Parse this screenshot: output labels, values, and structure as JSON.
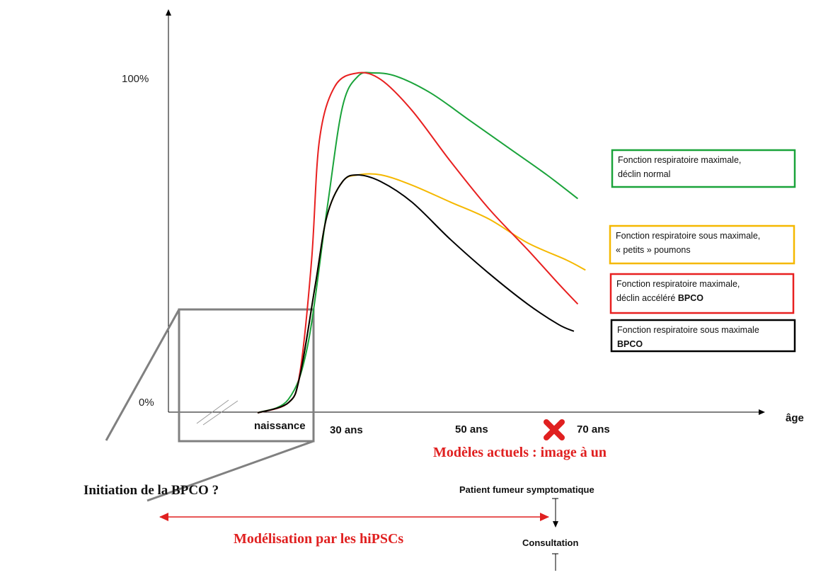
{
  "chart_data": {
    "type": "line",
    "title": "",
    "xlabel": "âge",
    "ylabel": "",
    "y_ticks": [
      "100%",
      "0%"
    ],
    "x_ticks": [
      "naissance",
      "30 ans",
      "50 ans",
      "70 ans"
    ],
    "series": [
      {
        "name": "Fonction respiratoire maximale, déclin normal",
        "color": "#1aa33a",
        "points": [
          [
            0,
            0
          ],
          [
            8,
            4
          ],
          [
            13,
            20
          ],
          [
            18,
            60
          ],
          [
            22,
            90
          ],
          [
            26,
            99
          ],
          [
            30,
            100
          ],
          [
            36,
            99
          ],
          [
            45,
            94
          ],
          [
            55,
            86
          ],
          [
            65,
            78
          ],
          [
            75,
            70
          ],
          [
            83,
            63
          ]
        ]
      },
      {
        "name": "Fonction respiratoire maximale, déclin accéléré BPCO",
        "color": "#e82020",
        "points": [
          [
            0,
            0
          ],
          [
            8,
            3
          ],
          [
            11,
            12
          ],
          [
            14,
            45
          ],
          [
            16,
            80
          ],
          [
            20,
            96
          ],
          [
            26,
            100
          ],
          [
            32,
            98
          ],
          [
            40,
            89
          ],
          [
            50,
            74
          ],
          [
            60,
            60
          ],
          [
            70,
            48
          ],
          [
            78,
            38
          ],
          [
            83,
            32
          ]
        ]
      },
      {
        "name": "Fonction respiratoire sous maximale, « petits » poumons",
        "color": "#f5b800",
        "points": [
          [
            0,
            0
          ],
          [
            8,
            3
          ],
          [
            11,
            11
          ],
          [
            15,
            38
          ],
          [
            18,
            58
          ],
          [
            22,
            68
          ],
          [
            26,
            70
          ],
          [
            32,
            70
          ],
          [
            40,
            67
          ],
          [
            50,
            62
          ],
          [
            60,
            57
          ],
          [
            70,
            50
          ],
          [
            80,
            45
          ],
          [
            85,
            42
          ]
        ]
      },
      {
        "name": "Fonction respiratoire sous maximale BPCO",
        "color": "#000000",
        "points": [
          [
            0,
            0
          ],
          [
            8,
            3
          ],
          [
            11,
            11
          ],
          [
            15,
            38
          ],
          [
            18,
            58
          ],
          [
            22,
            68
          ],
          [
            26,
            70
          ],
          [
            32,
            68
          ],
          [
            40,
            62
          ],
          [
            50,
            51
          ],
          [
            60,
            41
          ],
          [
            70,
            32
          ],
          [
            78,
            26
          ],
          [
            82,
            24
          ]
        ]
      }
    ],
    "legend": [
      {
        "line1": "Fonction respiratoire maximale,",
        "line2": "déclin normal",
        "bold2": "",
        "color": "#1aa33a"
      },
      {
        "line1": "Fonction respiratoire sous maximale,",
        "line2": "« petits » poumons",
        "bold2": "",
        "color": "#f5b800"
      },
      {
        "line1": "Fonction respiratoire maximale,",
        "line2": "déclin accéléré ",
        "bold2": "BPCO",
        "color": "#e82020"
      },
      {
        "line1": "Fonction respiratoire sous maximale",
        "line2": "",
        "bold2": "BPCO",
        "color": "#000000"
      }
    ],
    "legend_placement": "right",
    "grid": false
  },
  "annotations": {
    "current_models": "Modèles actuels : image à un",
    "initiation": "Initiation de la BPCO ?",
    "hipsc": "Modélisation par les hiPSCs",
    "patient": "Patient fumeur symptomatique",
    "consultation": "Consultation"
  },
  "colors": {
    "accent_red": "#e02020",
    "zoom_box": "#808080"
  }
}
